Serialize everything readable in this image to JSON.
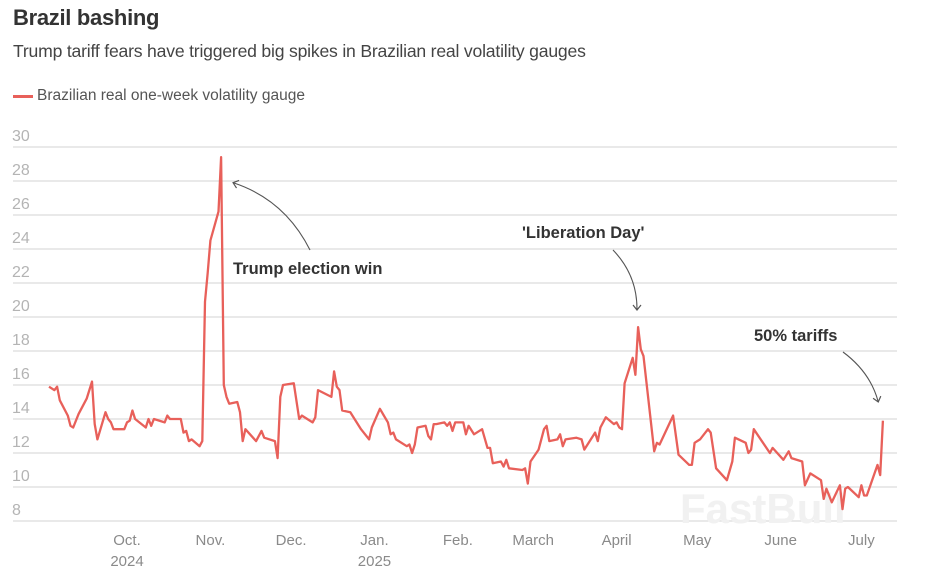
{
  "header": {
    "title": "Brazil bashing",
    "subtitle": "Trump tariff fears have triggered big spikes in Brazilian real volatility gauges"
  },
  "watermark": "FastBull",
  "chart_data": {
    "type": "line",
    "title": "Brazil bashing",
    "subtitle": "Trump tariff fears have triggered big spikes in Brazilian real volatility gauges",
    "xlabel": "",
    "ylabel": "",
    "ylim": [
      8,
      30
    ],
    "xlim": [
      "2024-09-01",
      "2025-07-12"
    ],
    "grid": "horizontal",
    "legend_position": "top-left",
    "line_color": "#e8605a",
    "y_ticks": [
      "8",
      "10",
      "12",
      "14",
      "16",
      "18",
      "20",
      "22",
      "24",
      "26",
      "28",
      "30"
    ],
    "x_ticks": [
      {
        "date": "2024-10-01",
        "label": "Oct.",
        "sublabel": "2024"
      },
      {
        "date": "2024-11-01",
        "label": "Nov.",
        "sublabel": ""
      },
      {
        "date": "2024-12-01",
        "label": "Dec.",
        "sublabel": ""
      },
      {
        "date": "2025-01-01",
        "label": "Jan.",
        "sublabel": "2025"
      },
      {
        "date": "2025-02-01",
        "label": "Feb.",
        "sublabel": ""
      },
      {
        "date": "2025-03-01",
        "label": "March",
        "sublabel": ""
      },
      {
        "date": "2025-04-01",
        "label": "April",
        "sublabel": ""
      },
      {
        "date": "2025-05-01",
        "label": "May",
        "sublabel": ""
      },
      {
        "date": "2025-06-01",
        "label": "June",
        "sublabel": ""
      },
      {
        "date": "2025-07-01",
        "label": "July",
        "sublabel": ""
      }
    ],
    "annotations": [
      {
        "text": "Trump election win",
        "date": "2024-11-05",
        "value": 29.4
      },
      {
        "text": "'Liberation Day'",
        "date": "2025-04-09",
        "value": 19.4
      },
      {
        "text": "50% tariffs",
        "date": "2025-07-09",
        "value": 13.9
      }
    ],
    "series": [
      {
        "name": "Brazilian real one-week volatility gauge",
        "points": [
          [
            "2024-09-02",
            15.9
          ],
          [
            "2024-09-04",
            15.7
          ],
          [
            "2024-09-05",
            15.9
          ],
          [
            "2024-09-06",
            15.1
          ],
          [
            "2024-09-09",
            14.2
          ],
          [
            "2024-09-10",
            13.6
          ],
          [
            "2024-09-11",
            13.5
          ],
          [
            "2024-09-13",
            14.3
          ],
          [
            "2024-09-16",
            15.2
          ],
          [
            "2024-09-18",
            16.2
          ],
          [
            "2024-09-19",
            13.7
          ],
          [
            "2024-09-20",
            12.8
          ],
          [
            "2024-09-23",
            14.4
          ],
          [
            "2024-09-24",
            14.0
          ],
          [
            "2024-09-25",
            13.8
          ],
          [
            "2024-09-26",
            13.4
          ],
          [
            "2024-09-30",
            13.4
          ],
          [
            "2024-10-01",
            13.8
          ],
          [
            "2024-10-02",
            13.9
          ],
          [
            "2024-10-03",
            14.5
          ],
          [
            "2024-10-04",
            14.0
          ],
          [
            "2024-10-08",
            13.5
          ],
          [
            "2024-10-09",
            14.0
          ],
          [
            "2024-10-10",
            13.6
          ],
          [
            "2024-10-11",
            14.0
          ],
          [
            "2024-10-15",
            13.8
          ],
          [
            "2024-10-16",
            14.2
          ],
          [
            "2024-10-17",
            14.0
          ],
          [
            "2024-10-21",
            14.0
          ],
          [
            "2024-10-22",
            13.2
          ],
          [
            "2024-10-23",
            13.3
          ],
          [
            "2024-10-24",
            12.7
          ],
          [
            "2024-10-25",
            12.8
          ],
          [
            "2024-10-28",
            12.4
          ],
          [
            "2024-10-29",
            12.7
          ],
          [
            "2024-10-30",
            20.9
          ],
          [
            "2024-10-31",
            22.6
          ],
          [
            "2024-11-01",
            24.5
          ],
          [
            "2024-11-04",
            26.2
          ],
          [
            "2024-11-05",
            29.4
          ],
          [
            "2024-11-06",
            16.0
          ],
          [
            "2024-11-07",
            15.3
          ],
          [
            "2024-11-08",
            14.9
          ],
          [
            "2024-11-11",
            15.0
          ],
          [
            "2024-11-12",
            14.4
          ],
          [
            "2024-11-13",
            12.7
          ],
          [
            "2024-11-14",
            13.4
          ],
          [
            "2024-11-18",
            12.7
          ],
          [
            "2024-11-20",
            13.3
          ],
          [
            "2024-11-21",
            12.9
          ],
          [
            "2024-11-25",
            12.7
          ],
          [
            "2024-11-26",
            11.7
          ],
          [
            "2024-11-27",
            15.3
          ],
          [
            "2024-11-28",
            16.0
          ],
          [
            "2024-12-02",
            16.1
          ],
          [
            "2024-12-04",
            14.0
          ],
          [
            "2024-12-05",
            14.2
          ],
          [
            "2024-12-09",
            13.8
          ],
          [
            "2024-12-10",
            14.1
          ],
          [
            "2024-12-11",
            15.7
          ],
          [
            "2024-12-16",
            15.3
          ],
          [
            "2024-12-17",
            16.8
          ],
          [
            "2024-12-18",
            15.9
          ],
          [
            "2024-12-19",
            15.7
          ],
          [
            "2024-12-20",
            14.5
          ],
          [
            "2024-12-23",
            14.4
          ],
          [
            "2024-12-27",
            13.4
          ],
          [
            "2024-12-30",
            12.8
          ],
          [
            "2024-12-31",
            13.5
          ],
          [
            "2025-01-03",
            14.6
          ],
          [
            "2025-01-06",
            13.8
          ],
          [
            "2025-01-07",
            13.1
          ],
          [
            "2025-01-08",
            13.2
          ],
          [
            "2025-01-09",
            12.8
          ],
          [
            "2025-01-13",
            12.4
          ],
          [
            "2025-01-14",
            12.5
          ],
          [
            "2025-01-15",
            12.0
          ],
          [
            "2025-01-16",
            12.5
          ],
          [
            "2025-01-17",
            13.5
          ],
          [
            "2025-01-20",
            13.6
          ],
          [
            "2025-01-21",
            13.0
          ],
          [
            "2025-01-22",
            12.8
          ],
          [
            "2025-01-23",
            13.7
          ],
          [
            "2025-01-24",
            13.7
          ],
          [
            "2025-01-27",
            13.8
          ],
          [
            "2025-01-28",
            13.6
          ],
          [
            "2025-01-29",
            13.8
          ],
          [
            "2025-01-30",
            13.3
          ],
          [
            "2025-01-31",
            13.8
          ],
          [
            "2025-02-03",
            13.8
          ],
          [
            "2025-02-04",
            13.1
          ],
          [
            "2025-02-05",
            13.6
          ],
          [
            "2025-02-07",
            13.1
          ],
          [
            "2025-02-10",
            13.4
          ],
          [
            "2025-02-12",
            12.3
          ],
          [
            "2025-02-13",
            12.3
          ],
          [
            "2025-02-14",
            11.4
          ],
          [
            "2025-02-17",
            11.5
          ],
          [
            "2025-02-18",
            11.2
          ],
          [
            "2025-02-19",
            11.6
          ],
          [
            "2025-02-20",
            11.1
          ],
          [
            "2025-02-25",
            11.0
          ],
          [
            "2025-02-26",
            11.1
          ],
          [
            "2025-02-27",
            10.2
          ],
          [
            "2025-02-28",
            11.5
          ],
          [
            "2025-03-03",
            12.2
          ],
          [
            "2025-03-05",
            13.4
          ],
          [
            "2025-03-06",
            13.6
          ],
          [
            "2025-03-07",
            12.7
          ],
          [
            "2025-03-10",
            12.8
          ],
          [
            "2025-03-11",
            13.1
          ],
          [
            "2025-03-12",
            12.4
          ],
          [
            "2025-03-13",
            12.8
          ],
          [
            "2025-03-17",
            12.9
          ],
          [
            "2025-03-19",
            12.8
          ],
          [
            "2025-03-20",
            12.2
          ],
          [
            "2025-03-24",
            13.2
          ],
          [
            "2025-03-25",
            12.7
          ],
          [
            "2025-03-26",
            13.5
          ],
          [
            "2025-03-28",
            14.1
          ],
          [
            "2025-03-31",
            13.7
          ],
          [
            "2025-04-01",
            13.8
          ],
          [
            "2025-04-02",
            13.5
          ],
          [
            "2025-04-03",
            13.4
          ],
          [
            "2025-04-04",
            16.1
          ],
          [
            "2025-04-07",
            17.6
          ],
          [
            "2025-04-08",
            16.6
          ],
          [
            "2025-04-09",
            19.4
          ],
          [
            "2025-04-10",
            18.1
          ],
          [
            "2025-04-11",
            17.7
          ],
          [
            "2025-04-15",
            12.1
          ],
          [
            "2025-04-16",
            12.6
          ],
          [
            "2025-04-17",
            12.5
          ],
          [
            "2025-04-22",
            14.2
          ],
          [
            "2025-04-24",
            11.9
          ],
          [
            "2025-04-28",
            11.3
          ],
          [
            "2025-04-29",
            11.3
          ],
          [
            "2025-04-30",
            12.6
          ],
          [
            "2025-05-02",
            12.8
          ],
          [
            "2025-05-05",
            13.4
          ],
          [
            "2025-05-06",
            13.2
          ],
          [
            "2025-05-08",
            11.1
          ],
          [
            "2025-05-12",
            10.4
          ],
          [
            "2025-05-14",
            11.5
          ],
          [
            "2025-05-15",
            12.9
          ],
          [
            "2025-05-19",
            12.6
          ],
          [
            "2025-05-20",
            12.0
          ],
          [
            "2025-05-21",
            12.2
          ],
          [
            "2025-05-22",
            13.4
          ],
          [
            "2025-05-28",
            12.0
          ],
          [
            "2025-05-29",
            12.3
          ],
          [
            "2025-06-02",
            11.6
          ],
          [
            "2025-06-04",
            12.1
          ],
          [
            "2025-06-05",
            11.7
          ],
          [
            "2025-06-09",
            11.5
          ],
          [
            "2025-06-10",
            10.1
          ],
          [
            "2025-06-12",
            10.8
          ],
          [
            "2025-06-16",
            10.4
          ],
          [
            "2025-06-17",
            9.3
          ],
          [
            "2025-06-18",
            9.9
          ],
          [
            "2025-06-20",
            9.1
          ],
          [
            "2025-06-23",
            10.1
          ],
          [
            "2025-06-24",
            8.7
          ],
          [
            "2025-06-25",
            9.9
          ],
          [
            "2025-06-26",
            10.0
          ],
          [
            "2025-06-30",
            9.4
          ],
          [
            "2025-07-01",
            10.1
          ],
          [
            "2025-07-02",
            9.5
          ],
          [
            "2025-07-03",
            9.5
          ],
          [
            "2025-07-07",
            11.3
          ],
          [
            "2025-07-08",
            10.7
          ],
          [
            "2025-07-09",
            13.9
          ]
        ]
      }
    ]
  }
}
